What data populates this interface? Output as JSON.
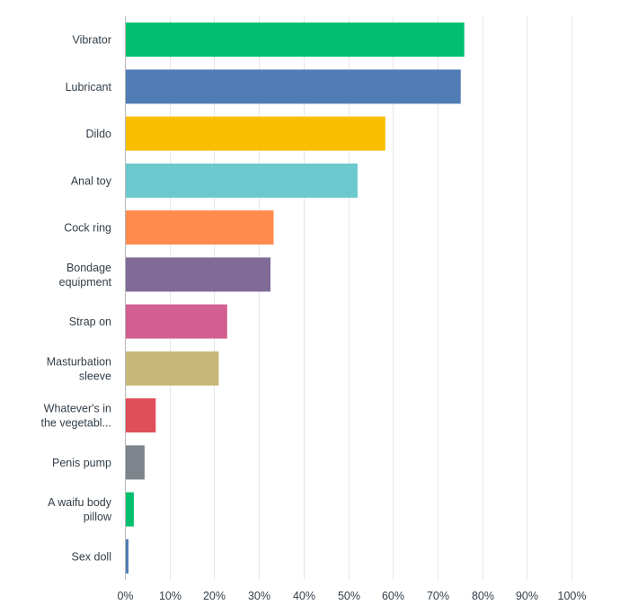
{
  "chart_data": {
    "type": "bar",
    "orientation": "horizontal",
    "title": "",
    "xlabel": "",
    "ylabel": "",
    "xlim": [
      0,
      100
    ],
    "value_unit": "%",
    "grid": true,
    "legend": "none",
    "categories": [
      [
        "Vibrator"
      ],
      [
        "Lubricant"
      ],
      [
        "Dildo"
      ],
      [
        "Anal toy"
      ],
      [
        "Cock ring"
      ],
      [
        "Bondage",
        "equipment"
      ],
      [
        "Strap on"
      ],
      [
        "Masturbation",
        "sleeve"
      ],
      [
        "Whatever's in",
        "the vegetabl..."
      ],
      [
        "Penis pump"
      ],
      [
        "A waifu body",
        "pillow"
      ],
      [
        "Sex doll"
      ]
    ],
    "values": [
      76,
      75.2,
      58.3,
      52.1,
      33.3,
      32.6,
      22.9,
      21.0,
      6.9,
      4.4,
      2.0,
      0.8
    ],
    "colors": [
      "#00bf6f",
      "#507cb6",
      "#f9be00",
      "#6bc8cd",
      "#ff8b4f",
      "#7f6a98",
      "#d25f90",
      "#c7b879",
      "#df4f5b",
      "#7d848b",
      "#00bf6f",
      "#507cb6"
    ],
    "ticks": [
      "0%",
      "10%",
      "20%",
      "30%",
      "40%",
      "50%",
      "60%",
      "70%",
      "80%",
      "90%",
      "100%"
    ]
  }
}
